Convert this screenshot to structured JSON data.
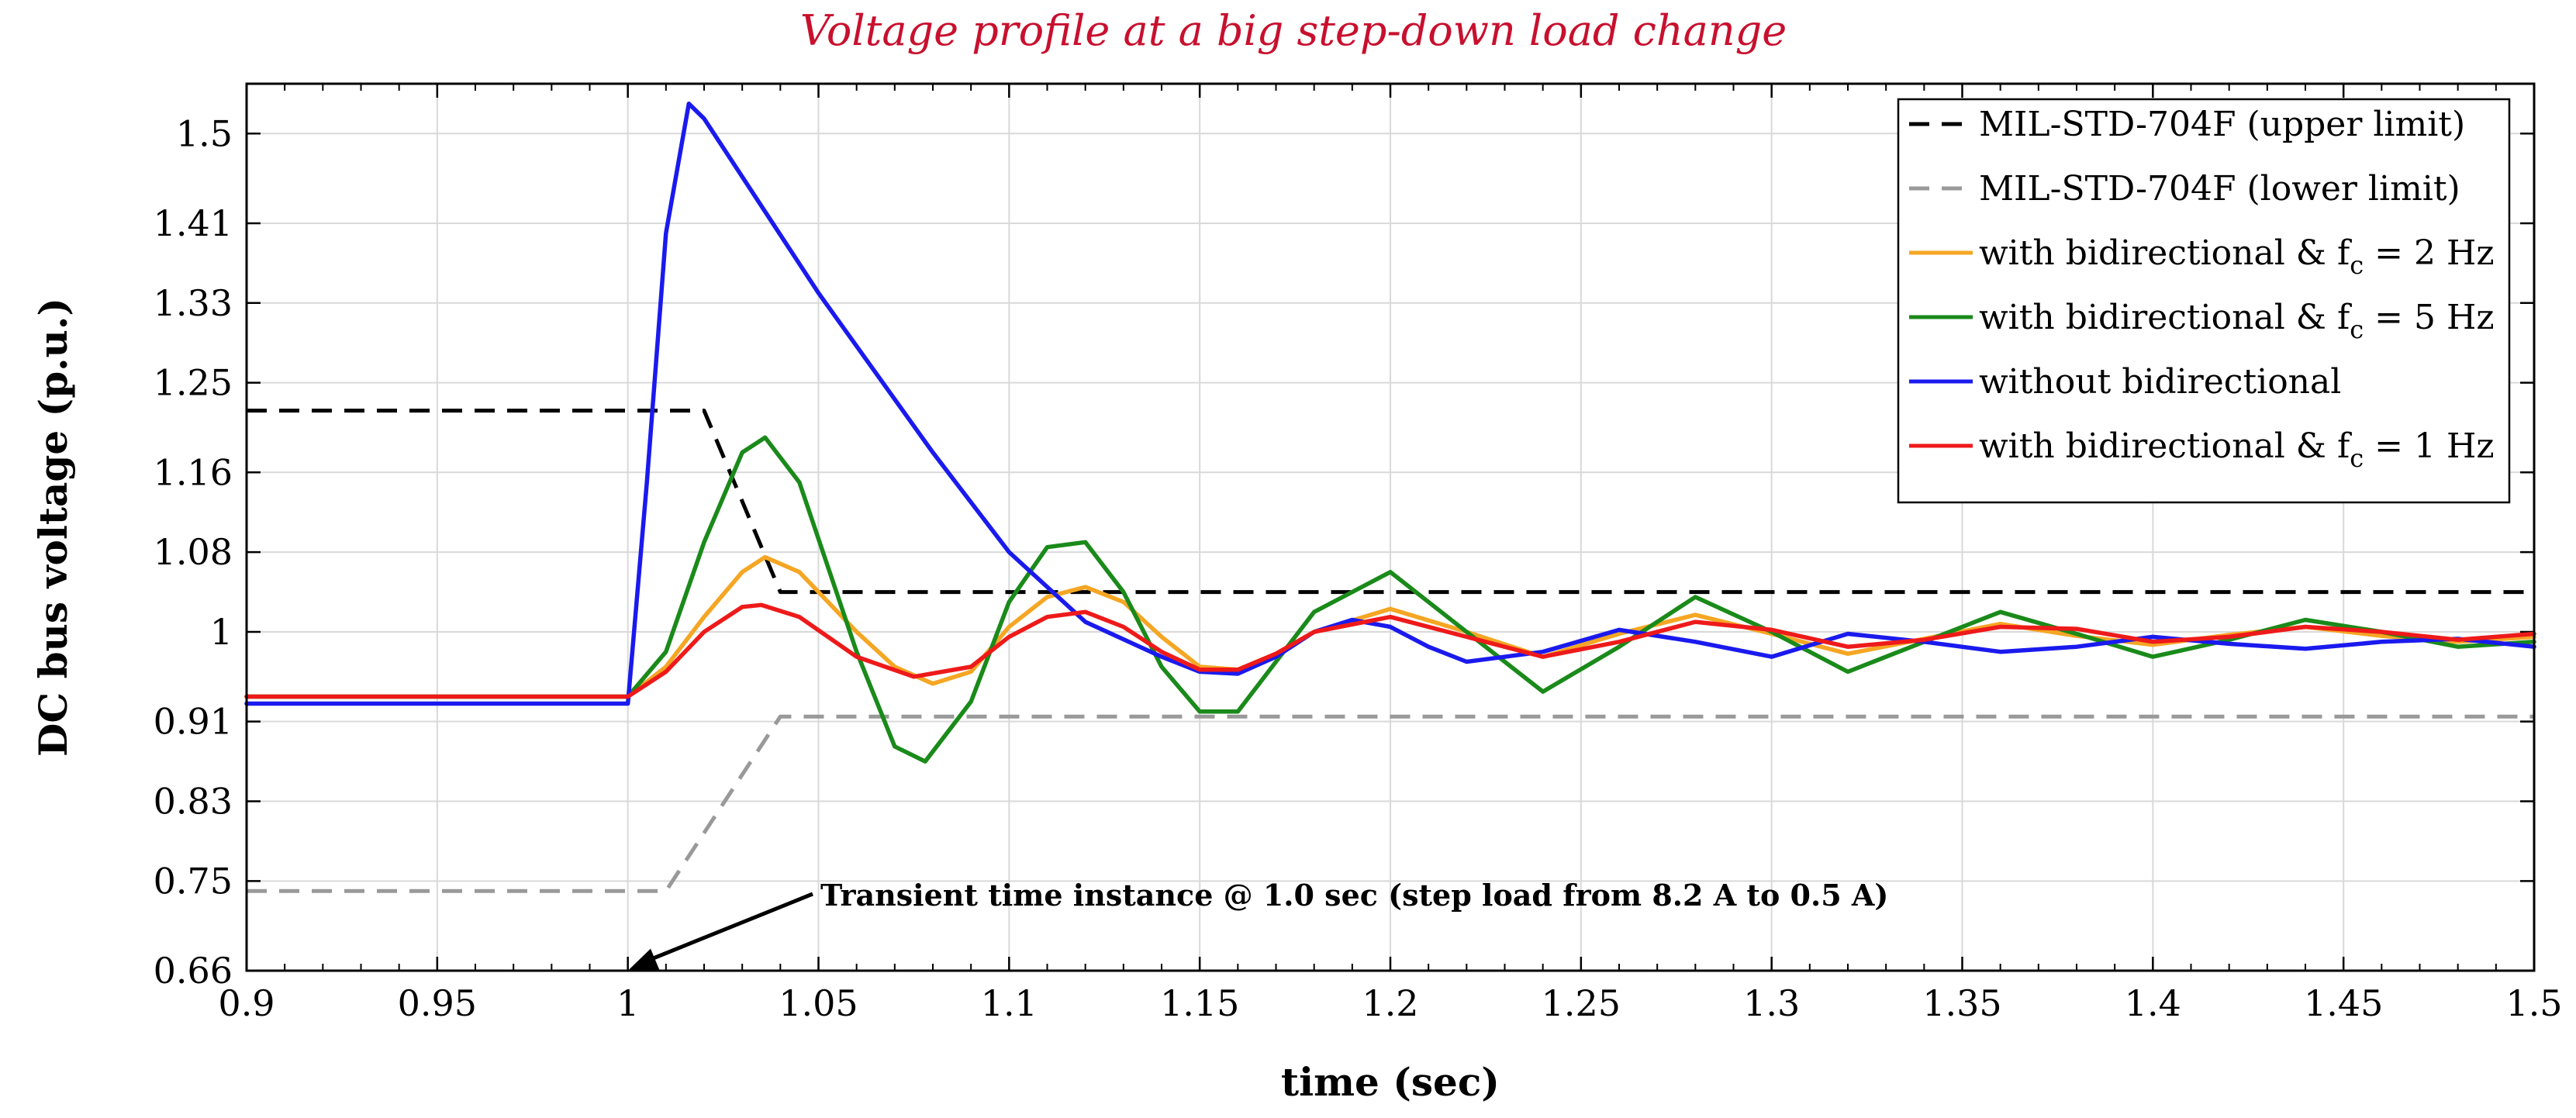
{
  "chart_data": {
    "type": "line",
    "title": "Voltage profile at a big step-down load change",
    "xlabel": "time (sec)",
    "ylabel": "DC bus voltage (p.u.)",
    "xlim": [
      0.9,
      1.5
    ],
    "ylim": [
      0.66,
      1.55
    ],
    "grid": true,
    "legend_position": "top-right",
    "x_ticks": [
      "0.9",
      "0.95",
      "1",
      "1.05",
      "1.1",
      "1.15",
      "1.2",
      "1.25",
      "1.3",
      "1.35",
      "1.4",
      "1.45",
      "1.5"
    ],
    "x_tick_values": [
      0.9,
      0.95,
      1.0,
      1.05,
      1.1,
      1.15,
      1.2,
      1.25,
      1.3,
      1.35,
      1.4,
      1.45,
      1.5
    ],
    "y_ticks": [
      "0.66",
      "0.75",
      "0.83",
      "0.91",
      "1",
      "1.08",
      "1.16",
      "1.25",
      "1.33",
      "1.41",
      "1.5"
    ],
    "y_tick_values": [
      0.66,
      0.75,
      0.83,
      0.91,
      1.0,
      1.08,
      1.16,
      1.25,
      1.33,
      1.41,
      1.5
    ],
    "annotation": {
      "text": "Transient time instance @ 1.0 sec (step load from 8.2 A to 0.5 A)",
      "x": 1.0,
      "y": 0.66
    },
    "series": [
      {
        "name": "MIL-STD-704F (upper limit)",
        "color": "#000000",
        "dash": true,
        "x": [
          0.9,
          1.02,
          1.04,
          1.5
        ],
        "y": [
          1.222,
          1.222,
          1.04,
          1.04
        ]
      },
      {
        "name": "MIL-STD-704F (lower limit)",
        "color": "#999999",
        "dash": true,
        "x": [
          0.9,
          1.01,
          1.04,
          1.5
        ],
        "y": [
          0.74,
          0.74,
          0.915,
          0.915
        ]
      },
      {
        "name": "with bidirectional & f",
        "subscript": "c",
        "suffix": " = 2 Hz",
        "color": "#f5a623",
        "x": [
          0.9,
          1.0,
          1.01,
          1.02,
          1.03,
          1.036,
          1.045,
          1.06,
          1.07,
          1.08,
          1.09,
          1.1,
          1.11,
          1.12,
          1.13,
          1.14,
          1.15,
          1.16,
          1.17,
          1.18,
          1.2,
          1.22,
          1.24,
          1.26,
          1.28,
          1.3,
          1.32,
          1.34,
          1.36,
          1.38,
          1.4,
          1.42,
          1.44,
          1.46,
          1.48,
          1.5
        ],
        "y": [
          0.935,
          0.935,
          0.965,
          1.015,
          1.06,
          1.075,
          1.06,
          1.0,
          0.965,
          0.948,
          0.96,
          1.005,
          1.035,
          1.045,
          1.03,
          0.995,
          0.965,
          0.962,
          0.978,
          1.0,
          1.023,
          1.0,
          0.975,
          0.998,
          1.017,
          0.998,
          0.978,
          0.993,
          1.008,
          0.996,
          0.987,
          0.997,
          1.005,
          0.996,
          0.99,
          0.995
        ]
      },
      {
        "name": "with bidirectional & f",
        "subscript": "c",
        "suffix": " = 5 Hz",
        "color": "#1a8a1a",
        "x": [
          0.9,
          1.0,
          1.01,
          1.02,
          1.03,
          1.036,
          1.045,
          1.06,
          1.07,
          1.078,
          1.09,
          1.1,
          1.11,
          1.12,
          1.13,
          1.14,
          1.15,
          1.16,
          1.17,
          1.18,
          1.2,
          1.22,
          1.24,
          1.26,
          1.28,
          1.3,
          1.32,
          1.34,
          1.36,
          1.38,
          1.4,
          1.42,
          1.44,
          1.46,
          1.48,
          1.5
        ],
        "y": [
          0.935,
          0.935,
          0.98,
          1.09,
          1.18,
          1.195,
          1.15,
          0.98,
          0.885,
          0.87,
          0.93,
          1.03,
          1.085,
          1.09,
          1.04,
          0.965,
          0.92,
          0.92,
          0.97,
          1.02,
          1.06,
          1.0,
          0.94,
          0.985,
          1.035,
          1.0,
          0.96,
          0.99,
          1.02,
          0.998,
          0.975,
          0.992,
          1.012,
          1.0,
          0.985,
          0.99
        ]
      },
      {
        "name": "without bidirectional",
        "color": "#1a1aee",
        "x": [
          0.9,
          1.0,
          1.005,
          1.01,
          1.016,
          1.02,
          1.05,
          1.08,
          1.1,
          1.12,
          1.14,
          1.15,
          1.16,
          1.17,
          1.18,
          1.19,
          1.2,
          1.21,
          1.22,
          1.24,
          1.26,
          1.28,
          1.3,
          1.32,
          1.34,
          1.36,
          1.38,
          1.4,
          1.42,
          1.44,
          1.46,
          1.48,
          1.5
        ],
        "y": [
          0.928,
          0.928,
          1.15,
          1.4,
          1.53,
          1.515,
          1.34,
          1.18,
          1.08,
          1.01,
          0.975,
          0.96,
          0.958,
          0.975,
          1.0,
          1.012,
          1.005,
          0.985,
          0.97,
          0.98,
          1.002,
          0.99,
          0.975,
          0.998,
          0.99,
          0.98,
          0.985,
          0.995,
          0.988,
          0.983,
          0.99,
          0.993,
          0.985
        ]
      },
      {
        "name": "with bidirectional & f",
        "subscript": "c",
        "suffix": " = 1 Hz",
        "color": "#ee1a1a",
        "x": [
          0.9,
          1.0,
          1.01,
          1.02,
          1.03,
          1.035,
          1.045,
          1.06,
          1.075,
          1.09,
          1.1,
          1.11,
          1.12,
          1.13,
          1.14,
          1.15,
          1.16,
          1.17,
          1.18,
          1.2,
          1.22,
          1.24,
          1.26,
          1.28,
          1.3,
          1.32,
          1.34,
          1.36,
          1.38,
          1.4,
          1.42,
          1.44,
          1.46,
          1.48,
          1.5
        ],
        "y": [
          0.935,
          0.935,
          0.96,
          1.0,
          1.025,
          1.027,
          1.015,
          0.975,
          0.955,
          0.965,
          0.995,
          1.015,
          1.02,
          1.005,
          0.98,
          0.962,
          0.962,
          0.978,
          1.0,
          1.015,
          0.995,
          0.975,
          0.99,
          1.01,
          1.002,
          0.985,
          0.992,
          1.005,
          1.003,
          0.99,
          0.995,
          1.005,
          1.0,
          0.992,
          0.998
        ]
      }
    ]
  }
}
